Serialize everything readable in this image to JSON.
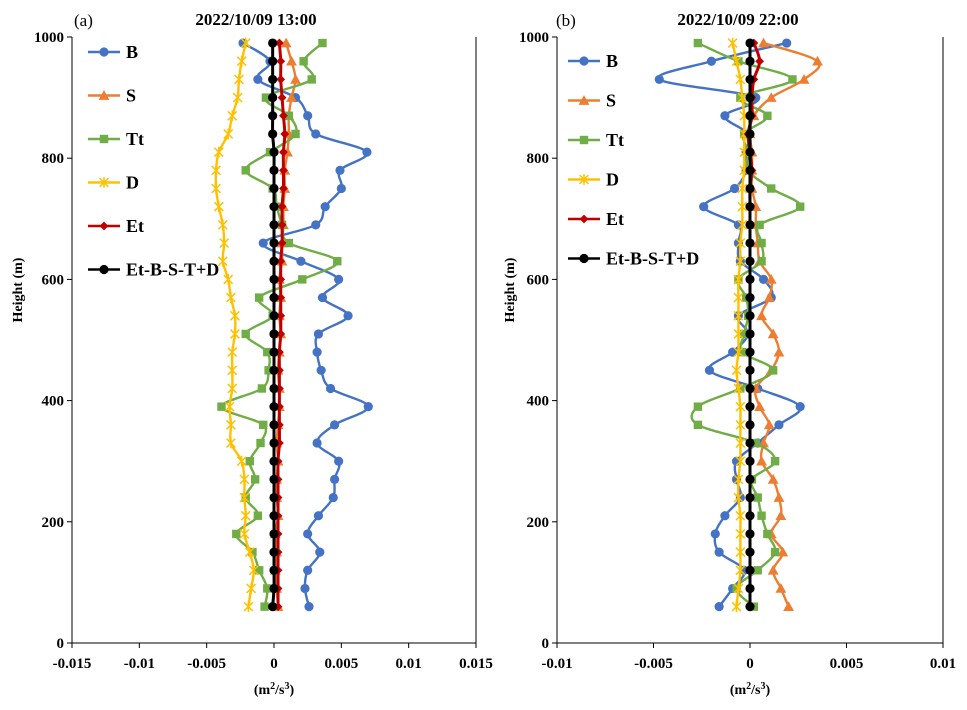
{
  "colors": {
    "B": "#4472C4",
    "S": "#ED7D31",
    "Tt": "#70AD47",
    "D": "#FFC000",
    "Et": "#C00000",
    "Sum": "#000000"
  },
  "markers": {
    "B": "circle",
    "S": "triangle",
    "Tt": "square",
    "D": "star",
    "Et": "diamond",
    "Sum": "circle"
  },
  "chart_data": [
    {
      "type": "line",
      "panel_label": "(a)",
      "title": "2022/10/09 13:00",
      "ylabel": "Height (m)",
      "xlabel": "(m²/s³)",
      "xlim": [
        -0.015,
        0.015
      ],
      "ylim": [
        0,
        1000
      ],
      "xticks": [
        "-0.015",
        "-0.01",
        "-0.005",
        "0",
        "0.005",
        "0.01",
        "0.015"
      ],
      "xtick_values": [
        -0.015,
        -0.01,
        -0.005,
        0,
        0.005,
        0.01,
        0.015
      ],
      "yticks": [
        "0",
        "200",
        "400",
        "600",
        "800",
        "1000"
      ],
      "ytick_values": [
        0,
        200,
        400,
        600,
        800,
        1000
      ],
      "legend": "top-left",
      "y": [
        60,
        90,
        120,
        150,
        180,
        210,
        240,
        270,
        300,
        330,
        360,
        390,
        420,
        450,
        480,
        510,
        540,
        570,
        600,
        630,
        660,
        690,
        720,
        750,
        780,
        810,
        840,
        870,
        900,
        930,
        960,
        990
      ],
      "series": [
        {
          "name": "B",
          "key": "B",
          "values": [
            0.0026,
            0.0023,
            0.0025,
            0.0034,
            0.0025,
            0.0033,
            0.0044,
            0.0045,
            0.0048,
            0.0032,
            0.0045,
            0.007,
            0.0042,
            0.0035,
            0.0032,
            0.0033,
            0.0055,
            0.0036,
            0.0048,
            0.002,
            -0.0008,
            0.0031,
            0.0038,
            0.005,
            0.0049,
            0.0069,
            0.0031,
            0.0025,
            0.0016,
            -0.0012,
            -0.0003,
            -0.0023
          ]
        },
        {
          "name": "S",
          "key": "S",
          "values": [
            0.0003,
            0.0002,
            0.0001,
            0.0002,
            0.0001,
            0.0003,
            0.0002,
            0.0002,
            0.0003,
            0.0002,
            0.0003,
            0.0004,
            0.0004,
            0.0003,
            0.0004,
            0.0005,
            0.0004,
            0.0005,
            0.0004,
            0.0006,
            0.0006,
            0.0007,
            0.0007,
            0.0008,
            0.0008,
            0.001,
            0.0011,
            0.0011,
            0.0013,
            0.0016,
            0.0013,
            0.0009
          ]
        },
        {
          "name": "Tt",
          "key": "Tt",
          "values": [
            -0.0007,
            -0.0005,
            -0.0011,
            -0.0016,
            -0.0028,
            -0.0012,
            -0.0021,
            -0.0014,
            -0.0018,
            -0.001,
            -0.0008,
            -0.0039,
            -0.0009,
            -0.0004,
            -0.0005,
            -0.0021,
            -0.0001,
            -0.0011,
            0.0021,
            0.0047,
            0.0011,
            0.0006,
            0.0002,
            -0.0001,
            -0.0021,
            -0.0003,
            0.0016,
            0.0011,
            -0.0006,
            0.0028,
            0.0022,
            0.0036
          ]
        },
        {
          "name": "D",
          "key": "D",
          "values": [
            -0.0019,
            -0.0017,
            -0.0015,
            -0.0018,
            -0.0022,
            -0.0021,
            -0.0022,
            -0.0022,
            -0.0024,
            -0.0032,
            -0.0032,
            -0.0033,
            -0.0031,
            -0.0031,
            -0.0031,
            -0.0029,
            -0.0029,
            -0.0032,
            -0.0034,
            -0.0038,
            -0.0037,
            -0.0038,
            -0.0041,
            -0.0043,
            -0.0043,
            -0.0041,
            -0.0034,
            -0.0031,
            -0.0027,
            -0.0026,
            -0.0024,
            -0.0021
          ]
        },
        {
          "name": "Et",
          "key": "Et",
          "values": [
            0.0003,
            0.0003,
            0.0003,
            0.0003,
            0.0003,
            0.0003,
            0.0003,
            0.0003,
            0.0003,
            0.0004,
            0.0004,
            0.0004,
            0.0004,
            0.0004,
            0.0004,
            0.0005,
            0.0005,
            0.0005,
            0.0005,
            0.0005,
            0.0006,
            0.0006,
            0.0006,
            0.0007,
            0.0007,
            0.0007,
            0.0008,
            0.0007,
            0.0006,
            0.0005,
            0.0005,
            0.0004
          ]
        },
        {
          "name": "Et-B-S-T+D",
          "key": "Sum",
          "values": [
            -0.0001,
            0,
            0,
            0,
            0,
            0,
            0,
            0,
            0,
            0,
            0,
            0,
            0,
            0,
            0,
            0,
            0,
            0,
            0,
            0,
            0,
            0,
            0,
            0,
            0,
            0,
            -0.0001,
            -0.0001,
            -0.0001,
            -0.0001,
            -0.0001,
            -0.0001
          ]
        }
      ]
    },
    {
      "type": "line",
      "panel_label": "(b)",
      "title": "2022/10/09 22:00",
      "ylabel": "Height (m)",
      "xlabel": "(m²/s³)",
      "xlim": [
        -0.01,
        0.01
      ],
      "ylim": [
        0,
        1000
      ],
      "xticks": [
        "-0.01",
        "-0.005",
        "0",
        "0.005",
        "0.01"
      ],
      "xtick_values": [
        -0.01,
        -0.005,
        0,
        0.005,
        0.01
      ],
      "yticks": [
        "0",
        "200",
        "400",
        "600",
        "800",
        "1000"
      ],
      "ytick_values": [
        0,
        200,
        400,
        600,
        800,
        1000
      ],
      "legend": "top-left",
      "y": [
        60,
        90,
        120,
        150,
        180,
        210,
        240,
        270,
        300,
        330,
        360,
        390,
        420,
        450,
        480,
        510,
        540,
        570,
        600,
        630,
        660,
        690,
        720,
        750,
        780,
        810,
        840,
        870,
        900,
        930,
        960,
        990
      ],
      "series": [
        {
          "name": "B",
          "key": "B",
          "values": [
            -0.0016,
            -0.0009,
            -0.0003,
            -0.0016,
            -0.0018,
            -0.0013,
            -0.0005,
            -0.0007,
            -0.0007,
            0.0004,
            0.0015,
            0.0026,
            0.0004,
            -0.0021,
            -0.0009,
            -0.0001,
            -0.0006,
            0.0011,
            0.0007,
            -0.0005,
            -0.0006,
            -0.0006,
            -0.0024,
            -0.0008,
            -0.0002,
            -0.0002,
            -0.0001,
            -0.0013,
            0.0003,
            -0.0047,
            -0.002,
            0.0019
          ]
        },
        {
          "name": "S",
          "key": "S",
          "values": [
            0.002,
            0.0016,
            0.0012,
            0.0017,
            0.0011,
            0.0016,
            0.0015,
            0.0012,
            0.0006,
            0.0007,
            0.001,
            0.0005,
            0.0003,
            0.0011,
            0.0015,
            0.0012,
            0.0006,
            0.001,
            0.0011,
            0.0005,
            0.0004,
            0.0003,
            0.0003,
            0.0001,
            0.0001,
            0.0001,
            0,
            0.0002,
            0.0011,
            0.0028,
            0.0035,
            0.0007
          ]
        },
        {
          "name": "Tt",
          "key": "Tt",
          "values": [
            0.0002,
            -0.0007,
            0.0004,
            0.0013,
            0.0009,
            0.0006,
            0.0004,
            0.0001,
            0.0013,
            0.0003,
            -0.0027,
            -0.0027,
            -0.0005,
            0.0012,
            -0.0004,
            -0.0003,
            -0.0001,
            -0.0002,
            -0.0006,
            0.0006,
            0.0006,
            0.0005,
            0.0026,
            0.0011,
            -0.0001,
            -0.0001,
            -0.0003,
            0.0009,
            -0.0005,
            0.0022,
            -0.0006,
            -0.0027
          ]
        },
        {
          "name": "D",
          "key": "D",
          "values": [
            -0.0007,
            -0.0006,
            -0.0005,
            -0.0005,
            -0.0005,
            -0.0005,
            -0.0006,
            -0.0006,
            -0.0005,
            -0.0005,
            -0.0005,
            -0.0005,
            -0.0006,
            -0.0007,
            -0.0006,
            -0.0006,
            -0.0006,
            -0.0006,
            -0.0006,
            -0.0005,
            -0.0005,
            -0.0004,
            -0.0004,
            -0.0004,
            -0.0003,
            -0.0003,
            -0.0003,
            -0.0003,
            -0.0004,
            -0.0005,
            -0.0007,
            -0.0009
          ]
        },
        {
          "name": "Et",
          "key": "Et",
          "values": [
            0,
            0,
            0,
            0,
            0,
            0,
            0,
            0,
            0,
            0,
            0,
            0,
            0,
            0,
            0,
            0,
            0,
            0,
            0,
            0,
            0,
            0,
            0,
            0,
            0.0001,
            0,
            -0.0001,
            0.0001,
            0.0001,
            0.0002,
            0.0005,
            0.0002
          ]
        },
        {
          "name": "Et-B-S-T+D",
          "key": "Sum",
          "values": [
            0,
            0,
            0,
            0,
            0,
            0,
            0,
            0,
            0,
            0,
            0,
            0,
            0,
            0,
            0,
            0,
            0,
            0,
            0,
            0,
            0,
            0,
            0,
            0,
            0,
            0,
            0,
            0,
            0,
            0,
            0,
            0
          ]
        }
      ]
    }
  ]
}
